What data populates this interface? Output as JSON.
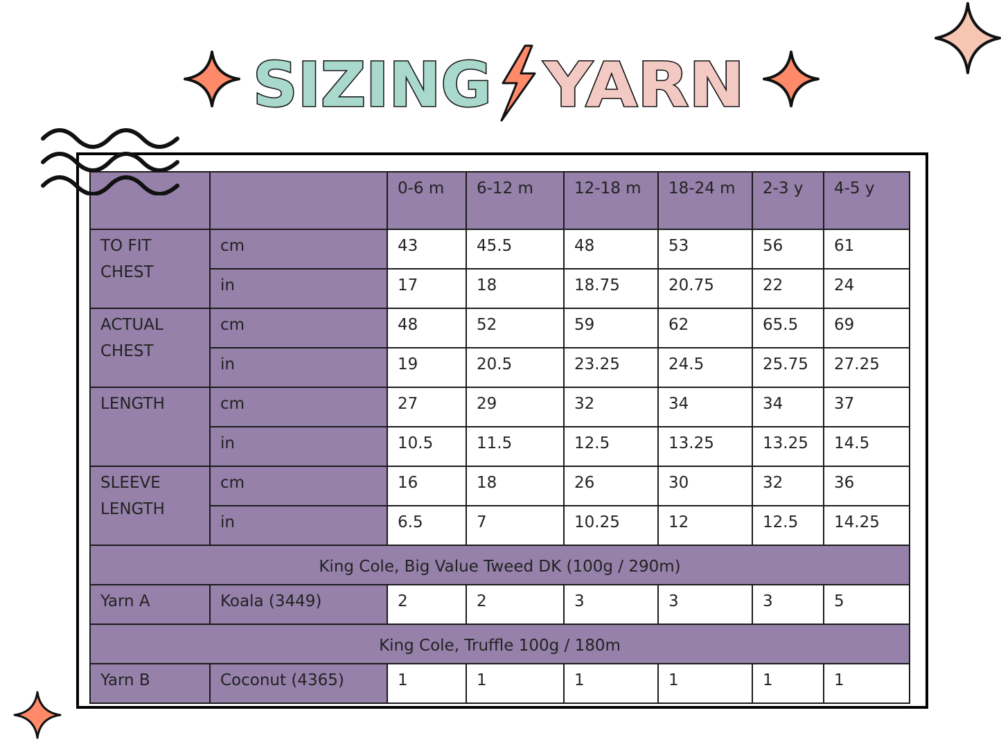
{
  "title": {
    "word1": "SIZING",
    "word2": "YARN"
  },
  "colors": {
    "purple": "#9581a9",
    "coral": "#ff8a6a",
    "pink": "#f3c9c3",
    "mint": "#a9d9cc",
    "border": "#1a1a1a"
  },
  "icons": [
    "sparkle-icon",
    "lightning-bolt-icon",
    "wave-lines-icon"
  ],
  "table": {
    "sizes": [
      "0-6 m",
      "6-12 m",
      "12-18 m",
      "18-24 m",
      "2-3 y",
      "4-5 y"
    ],
    "measurements": [
      {
        "label": "TO FIT CHEST",
        "rows": [
          {
            "unit": "cm",
            "values": [
              "43",
              "45.5",
              "48",
              "53",
              "56",
              "61"
            ]
          },
          {
            "unit": "in",
            "values": [
              "17",
              "18",
              "18.75",
              "20.75",
              "22",
              "24"
            ]
          }
        ]
      },
      {
        "label": "ACTUAL CHEST",
        "rows": [
          {
            "unit": "cm",
            "values": [
              "48",
              "52",
              "59",
              "62",
              "65.5",
              "69"
            ]
          },
          {
            "unit": "in",
            "values": [
              "19",
              "20.5",
              "23.25",
              "24.5",
              "25.75",
              "27.25"
            ]
          }
        ]
      },
      {
        "label": "LENGTH",
        "rows": [
          {
            "unit": "cm",
            "values": [
              "27",
              "29",
              "32",
              "34",
              "34",
              "37"
            ]
          },
          {
            "unit": "in",
            "values": [
              "10.5",
              "11.5",
              "12.5",
              "13.25",
              "13.25",
              "14.5"
            ]
          }
        ]
      },
      {
        "label": "SLEEVE LENGTH",
        "rows": [
          {
            "unit": "cm",
            "values": [
              "16",
              "18",
              "26",
              "30",
              "32",
              "36"
            ]
          },
          {
            "unit": "in",
            "values": [
              "6.5",
              "7",
              "10.25",
              "12",
              "12.5",
              "14.25"
            ]
          }
        ]
      }
    ],
    "yarns": [
      {
        "heading": "King Cole, Big Value Tweed DK  (100g / 290m)",
        "label": "Yarn A",
        "color": "Koala (3449)",
        "values": [
          "2",
          "2",
          "3",
          "3",
          "3",
          "5"
        ]
      },
      {
        "heading": "King Cole, Truffle 100g / 180m",
        "label": "Yarn B",
        "color": "Coconut (4365)",
        "values": [
          "1",
          "1",
          "1",
          "1",
          "1",
          "1"
        ]
      }
    ]
  }
}
